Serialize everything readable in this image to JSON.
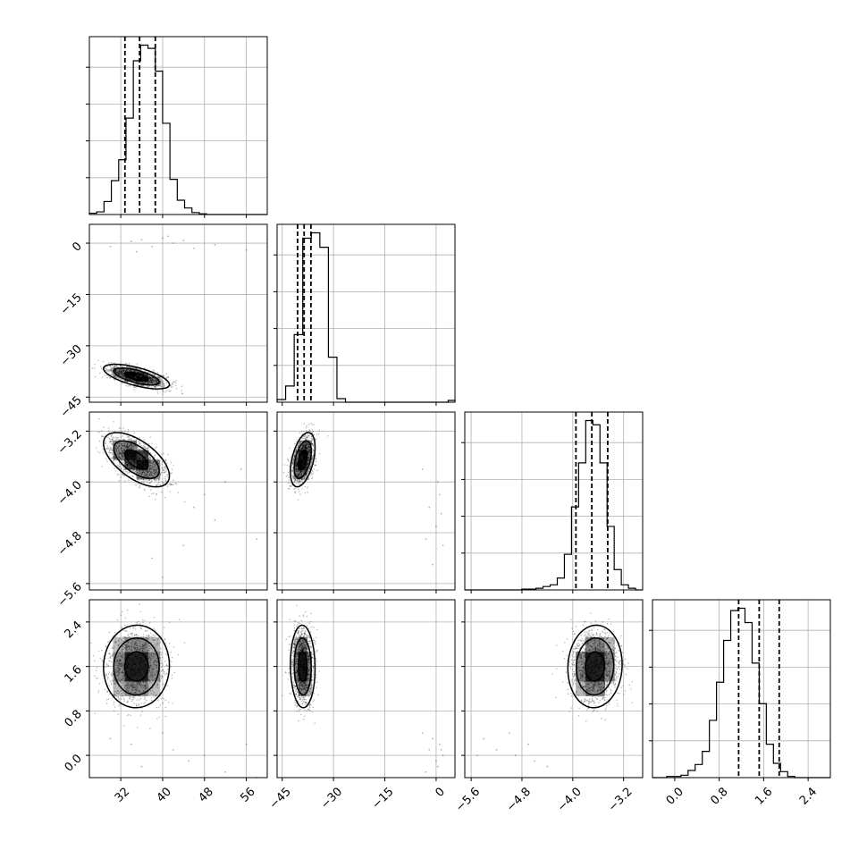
{
  "chart_data": {
    "type": "corner",
    "grid": true,
    "title": "",
    "n_params": 4,
    "params": [
      {
        "label": "",
        "range": [
          26,
          60
        ],
        "ticks": [
          32,
          40,
          48,
          56
        ],
        "tick_labels": [
          "32",
          "40",
          "48",
          "56"
        ],
        "quantiles": [
          32.8,
          35.6,
          38.6
        ],
        "mode": 35,
        "sd": 2.8
      },
      {
        "label": "",
        "range": [
          -46.5,
          5.5
        ],
        "ticks": [
          -45,
          -30,
          -15,
          0
        ],
        "tick_labels": [
          "−45",
          "−30",
          "−15",
          "0"
        ],
        "quantiles": [
          -40.5,
          -38.6,
          -36.6
        ],
        "mode": -39,
        "sd": 1.6
      },
      {
        "label": "",
        "range": [
          -5.7,
          -2.9
        ],
        "ticks": [
          -5.6,
          -4.8,
          -4.0,
          -3.2
        ],
        "tick_labels": [
          "−5.6",
          "−4.8",
          "−4.0",
          "−3.2"
        ],
        "quantiles": [
          -3.95,
          -3.7,
          -3.45
        ],
        "mode": -3.65,
        "sd": 0.19
      },
      {
        "label": "",
        "range": [
          -0.4,
          2.8
        ],
        "ticks": [
          0.0,
          0.8,
          1.6,
          2.4
        ],
        "tick_labels": [
          "0.0",
          "0.8",
          "1.6",
          "2.4"
        ],
        "quantiles": [
          1.15,
          1.52,
          1.88
        ],
        "mode": 1.6,
        "sd": 0.33
      }
    ],
    "histograms": [
      {
        "param": 0,
        "bin_start": 26,
        "bin_width": 1.4,
        "counts": [
          2,
          4,
          20,
          52,
          84,
          148,
          236,
          260,
          255,
          220,
          140,
          54,
          22,
          10,
          3,
          1,
          0,
          0,
          0,
          0,
          0,
          0,
          0,
          0,
          0
        ]
      },
      {
        "param": 1,
        "bin_start": -46.5,
        "bin_width": 2.5,
        "counts": [
          3,
          18,
          75,
          182,
          188,
          172,
          50,
          4,
          0,
          0,
          0,
          0,
          0,
          0,
          0,
          0,
          0,
          0,
          0,
          0,
          2,
          0
        ]
      },
      {
        "param": 2,
        "bin_start": -5.7,
        "bin_width": 0.112,
        "counts": [
          0,
          0,
          0,
          0,
          0,
          0,
          0,
          0,
          1,
          1,
          2,
          4,
          6,
          14,
          42,
          98,
          150,
          200,
          195,
          150,
          75,
          24,
          6,
          2,
          0
        ]
      },
      {
        "param": 3,
        "bin_start": -0.4,
        "bin_width": 0.128,
        "counts": [
          0,
          0,
          1,
          1,
          2,
          6,
          11,
          22,
          48,
          80,
          115,
          140,
          142,
          130,
          96,
          62,
          28,
          12,
          5,
          1,
          0,
          0,
          0,
          0,
          0
        ]
      }
    ],
    "correlations": {
      "1_0": -0.65,
      "2_0": -0.6,
      "2_1": 0.45,
      "3_0": 0.02,
      "3_1": -0.05,
      "3_2": 0.05
    },
    "outliers": {
      "1_0": [
        [
          34,
          0.5
        ],
        [
          36,
          1
        ],
        [
          40,
          1.5
        ],
        [
          38,
          -1
        ],
        [
          42,
          0
        ],
        [
          44,
          0.8
        ],
        [
          46,
          -1.5
        ],
        [
          50,
          -0.5
        ],
        [
          56,
          -2
        ],
        [
          30,
          -1
        ],
        [
          41,
          2
        ],
        [
          35,
          -2.5
        ]
      ],
      "2_0": [
        [
          48,
          -4.2
        ],
        [
          50,
          -4.6
        ],
        [
          52,
          -4.0
        ],
        [
          44,
          -5.0
        ],
        [
          40,
          -5.5
        ],
        [
          55,
          -3.8
        ],
        [
          46,
          -4.4
        ],
        [
          58,
          -4.9
        ],
        [
          38,
          -5.2
        ]
      ],
      "2_1": [
        [
          -2,
          -4.4
        ],
        [
          0,
          -4.7
        ],
        [
          1,
          -4.2
        ],
        [
          -3,
          -4.9
        ],
        [
          2,
          -5.0
        ],
        [
          -1,
          -5.3
        ],
        [
          0.5,
          -4.0
        ],
        [
          -4,
          -3.8
        ],
        [
          1.5,
          -4.5
        ]
      ],
      "3_0": [
        [
          36,
          -0.2
        ],
        [
          42,
          0.1
        ],
        [
          48,
          0.0
        ],
        [
          52,
          -0.3
        ],
        [
          56,
          0.2
        ],
        [
          40,
          0.4
        ],
        [
          34,
          0.2
        ],
        [
          45,
          -0.1
        ],
        [
          58,
          -0.4
        ],
        [
          30,
          0.3
        ]
      ],
      "3_1": [
        [
          -2,
          0.1
        ],
        [
          0,
          -0.1
        ],
        [
          1,
          0.2
        ],
        [
          -3,
          -0.3
        ],
        [
          2,
          0.0
        ],
        [
          -1,
          0.3
        ],
        [
          0.5,
          -0.2
        ],
        [
          -4,
          0.4
        ],
        [
          1.5,
          0.1
        ]
      ],
      "3_2": [
        [
          -5.2,
          0.1
        ],
        [
          -4.9,
          0.0
        ],
        [
          -5.4,
          0.3
        ],
        [
          -4.6,
          -0.1
        ],
        [
          -5.0,
          0.4
        ],
        [
          -4.7,
          0.2
        ],
        [
          -5.5,
          0.0
        ],
        [
          -4.4,
          -0.2
        ]
      ]
    }
  }
}
